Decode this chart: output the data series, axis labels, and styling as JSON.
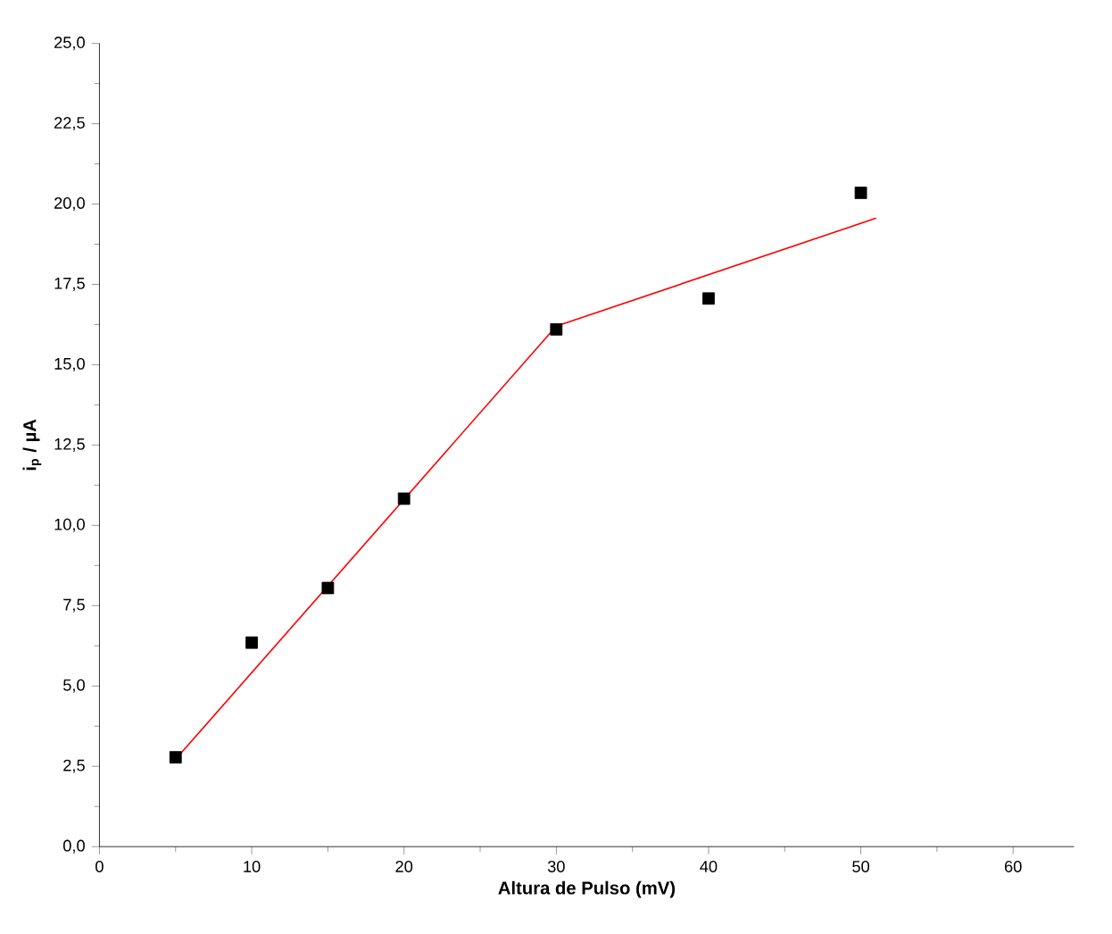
{
  "chart_data": {
    "type": "scatter",
    "xlabel": "Altura de Pulso (mV)",
    "ylabel": "i$_{p}$ / µA",
    "xlim": [
      0,
      64
    ],
    "ylim": [
      0,
      25
    ],
    "xticks": [
      0,
      10,
      20,
      30,
      40,
      50,
      60
    ],
    "yticks": [
      {
        "value": 0,
        "label": "0,0"
      },
      {
        "value": 2.5,
        "label": "2,5"
      },
      {
        "value": 5,
        "label": "5,0"
      },
      {
        "value": 7.5,
        "label": "7,5"
      },
      {
        "value": 10,
        "label": "10,0"
      },
      {
        "value": 12.5,
        "label": "12,5"
      },
      {
        "value": 15,
        "label": "15,0"
      },
      {
        "value": 17.5,
        "label": "17,5"
      },
      {
        "value": 20,
        "label": "20,0"
      },
      {
        "value": 22.5,
        "label": "22,5"
      },
      {
        "value": 25,
        "label": "25,0"
      }
    ],
    "grid": false,
    "series": [
      {
        "color": "#000000",
        "marker": "square",
        "x": [
          5,
          10,
          15,
          20,
          30,
          40,
          50
        ],
        "values": [
          2.78,
          6.35,
          8.05,
          10.83,
          16.1,
          17.06,
          20.35
        ]
      },
      {
        "type": "line",
        "color": "#ff0000",
        "marker": "none",
        "line_style": "solid",
        "x": [
          5,
          30,
          51
        ],
        "values": [
          2.72,
          16.2,
          19.56
        ]
      }
    ]
  }
}
